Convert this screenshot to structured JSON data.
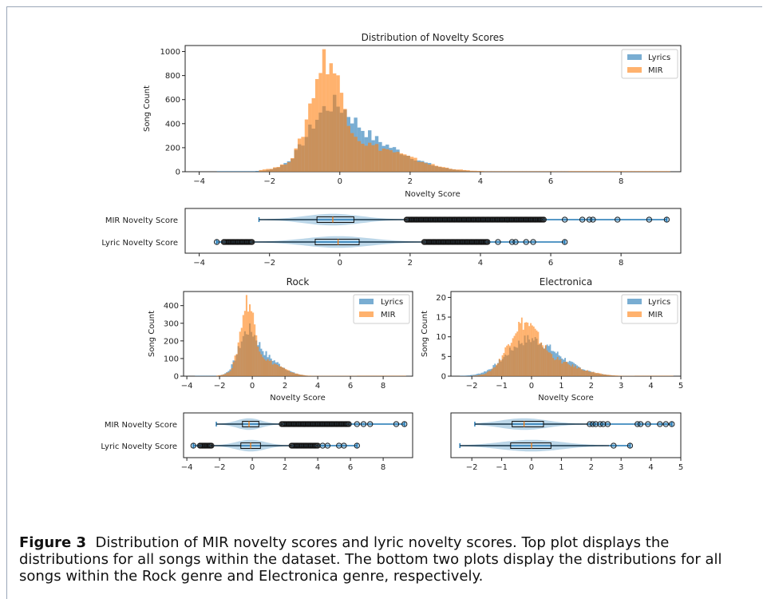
{
  "caption": {
    "label": "Figure 3",
    "text": "Distribution of MIR novelty scores and lyric novelty scores. Top plot displays the distributions for all songs within the dataset. The bottom two plots display the distributions for all songs within the Rock genre and Electronica genre, respectively."
  },
  "colors": {
    "lyrics": "#1f77b4",
    "mir": "#ff7f0e"
  },
  "chart_data": [
    {
      "id": "main-hist",
      "type": "bar",
      "title": "Distribution of Novelty Scores",
      "xlabel": "Novelty Score",
      "ylabel": "Song Count",
      "xlim": [
        -4.4,
        9.7
      ],
      "ylim": [
        0,
        1050
      ],
      "xticks": [
        -4,
        -2,
        0,
        2,
        4,
        6,
        8
      ],
      "yticks": [
        0,
        200,
        400,
        600,
        800,
        1000
      ],
      "legend": "top-right",
      "bin_width": 0.1,
      "series": [
        {
          "name": "Lyrics",
          "dist": {
            "mu": -0.3,
            "sd": 0.6,
            "mu2": 0.75,
            "sd2": 1.1,
            "w2": 0.38,
            "peak": 640,
            "min": -3.5,
            "max": 6.4
          }
        },
        {
          "name": "MIR",
          "dist": {
            "mu": -0.4,
            "sd": 0.42,
            "mu2": 0.6,
            "sd2": 1.25,
            "w2": 0.22,
            "peak": 1000,
            "min": -2.3,
            "max": 9.3
          }
        }
      ]
    },
    {
      "id": "main-violin",
      "type": "violin",
      "xlim": [
        -4.4,
        9.7
      ],
      "xticks": [
        -4,
        -2,
        0,
        2,
        4,
        6,
        8
      ],
      "categories": [
        "MIR Novelty Score",
        "Lyric Novelty Score"
      ],
      "boxes": [
        {
          "name": "MIR Novelty Score",
          "min": -2.3,
          "q1": -0.65,
          "median": -0.2,
          "q3": 0.4,
          "max": 9.3,
          "whisker_lo": -2.3,
          "whisker_hi": 1.9,
          "fliers_dense": [
            1.9,
            5.8
          ],
          "fliers": [
            6.4,
            6.9,
            7.1,
            7.2,
            7.9,
            8.8,
            9.3
          ]
        },
        {
          "name": "Lyric Novelty Score",
          "min": -3.5,
          "q1": -0.7,
          "median": -0.05,
          "q3": 0.55,
          "max": 6.4,
          "whisker_lo": -2.5,
          "whisker_hi": 2.4,
          "fliers_dense": [
            -3.3,
            -2.5,
            2.4,
            4.2
          ],
          "fliers": [
            -3.5,
            4.5,
            4.9,
            5.0,
            5.3,
            5.5,
            6.4
          ]
        }
      ]
    },
    {
      "id": "rock-hist",
      "type": "bar",
      "title": "Rock",
      "xlabel": "Novelty Score",
      "ylabel": "Song Count",
      "xlim": [
        -4.2,
        9.8
      ],
      "ylim": [
        0,
        480
      ],
      "xticks": [
        -4,
        -2,
        0,
        2,
        4,
        6,
        8
      ],
      "yticks": [
        0,
        100,
        200,
        300,
        400
      ],
      "legend": "top-right",
      "bin_width": 0.1,
      "series": [
        {
          "name": "Lyrics",
          "dist": {
            "mu": -0.3,
            "sd": 0.55,
            "mu2": 0.7,
            "sd2": 1.0,
            "w2": 0.35,
            "peak": 300,
            "min": -3.5,
            "max": 6.3
          }
        },
        {
          "name": "MIR",
          "dist": {
            "mu": -0.3,
            "sd": 0.42,
            "mu2": 0.6,
            "sd2": 1.1,
            "w2": 0.2,
            "peak": 450,
            "min": -2.2,
            "max": 9.3
          }
        }
      ]
    },
    {
      "id": "electronica-hist",
      "type": "bar",
      "title": "Electronica",
      "xlabel": "Novelty Score",
      "ylabel": "Song Count",
      "xlim": [
        -2.7,
        5.0
      ],
      "ylim": [
        0,
        21.5
      ],
      "xticks": [
        -2,
        -1,
        0,
        1,
        2,
        3,
        4,
        5
      ],
      "yticks": [
        0,
        5,
        10,
        15,
        20
      ],
      "legend": "top-right",
      "bin_width": 0.05,
      "series": [
        {
          "name": "Lyrics",
          "dist": {
            "mu": -0.2,
            "sd": 0.7,
            "mu2": 0.8,
            "sd2": 0.8,
            "w2": 0.3,
            "peak": 11,
            "min": -2.4,
            "max": 3.4
          }
        },
        {
          "name": "MIR",
          "dist": {
            "mu": -0.3,
            "sd": 0.5,
            "mu2": 0.6,
            "sd2": 0.9,
            "w2": 0.25,
            "peak": 15,
            "min": -2.0,
            "max": 4.7
          }
        }
      ]
    },
    {
      "id": "rock-violin",
      "type": "violin",
      "xlim": [
        -4.2,
        9.8
      ],
      "xticks": [
        -4,
        -2,
        0,
        2,
        4,
        6,
        8
      ],
      "categories": [
        "MIR Novelty Score",
        "Lyric Novelty Score"
      ],
      "boxes": [
        {
          "name": "MIR Novelty Score",
          "min": -2.2,
          "q1": -0.6,
          "median": -0.2,
          "q3": 0.4,
          "max": 9.3,
          "whisker_lo": -2.2,
          "whisker_hi": 1.8,
          "fliers_dense": [
            1.8,
            5.9
          ],
          "fliers": [
            6.4,
            6.8,
            7.2,
            8.8,
            9.3
          ]
        },
        {
          "name": "Lyric Novelty Score",
          "min": -3.6,
          "q1": -0.7,
          "median": -0.1,
          "q3": 0.5,
          "max": 6.4,
          "whisker_lo": -2.5,
          "whisker_hi": 2.4,
          "fliers_dense": [
            -3.2,
            -2.5,
            2.4,
            4.0
          ],
          "fliers": [
            -3.6,
            4.3,
            4.6,
            5.3,
            5.6,
            6.4
          ]
        }
      ]
    },
    {
      "id": "electronica-violin",
      "type": "violin",
      "xlim": [
        -2.7,
        5.0
      ],
      "xticks": [
        -2,
        -1,
        0,
        1,
        2,
        3,
        4,
        5
      ],
      "categories": [
        "MIR Novelty Score",
        "Lyric Novelty Score"
      ],
      "boxes": [
        {
          "name": "MIR Novelty Score",
          "min": -1.9,
          "q1": -0.65,
          "median": -0.25,
          "q3": 0.4,
          "max": 4.7,
          "whisker_lo": -1.9,
          "whisker_hi": 1.9,
          "fliers_dense": [],
          "fliers": [
            1.95,
            2.05,
            2.15,
            2.3,
            2.4,
            2.55,
            3.55,
            3.65,
            3.9,
            4.3,
            4.5,
            4.7
          ]
        },
        {
          "name": "Lyric Novelty Score",
          "min": -2.4,
          "q1": -0.7,
          "median": 0.0,
          "q3": 0.65,
          "max": 3.3,
          "whisker_lo": -2.4,
          "whisker_hi": 2.6,
          "fliers_dense": [],
          "fliers": [
            2.75,
            3.3
          ]
        }
      ]
    }
  ]
}
